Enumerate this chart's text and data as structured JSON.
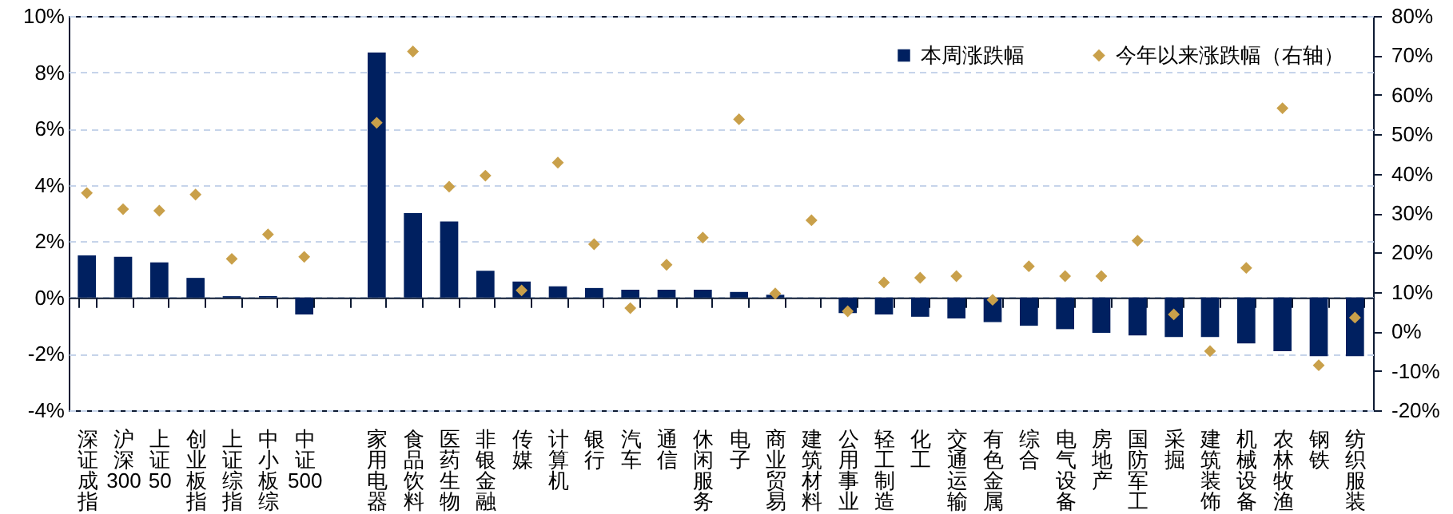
{
  "chart_data": {
    "type": "bar",
    "categories": [
      "深证成指",
      "沪深300",
      "上证50",
      "创业板指",
      "上证综指",
      "中小板综",
      "中证500",
      null,
      "家用电器",
      "食品饮料",
      "医药生物",
      "非银金融",
      "传媒",
      "计算机",
      "银行",
      "汽车",
      "通信",
      "休闲服务",
      "电子",
      "商业贸易",
      "建筑材料",
      "公用事业",
      "轻工制造",
      "化工",
      "交通运输",
      "有色金属",
      "综合",
      "电气设备",
      "房地产",
      "国防军工",
      "采掘",
      "建筑装饰",
      "机械设备",
      "农林牧渔",
      "钢铁",
      "纺织服装"
    ],
    "series": [
      {
        "name": "本周涨跌幅",
        "type": "bar",
        "color": "#002060",
        "values": [
          1.5,
          1.45,
          1.25,
          0.7,
          0.05,
          0.05,
          -0.6,
          null,
          8.7,
          3.0,
          2.7,
          0.95,
          0.57,
          0.4,
          0.34,
          0.28,
          0.28,
          0.28,
          0.2,
          0.1,
          0,
          -0.55,
          -0.6,
          -0.68,
          -0.74,
          -0.87,
          -1.0,
          -1.12,
          -1.25,
          -1.34,
          -1.4,
          -1.4,
          -1.63,
          -1.9,
          -2.08,
          -2.08
        ]
      },
      {
        "name": "今年以来涨跌幅（右轴）",
        "type": "scatter",
        "axis": "y2",
        "color": "#c9a04a",
        "values": [
          35.1,
          31,
          30.6,
          34.7,
          18.4,
          24.6,
          18.9,
          null,
          52.9,
          71,
          36.7,
          39.5,
          10.4,
          42.8,
          22.1,
          5.9,
          16.9,
          23.8,
          53.8,
          9.6,
          28.2,
          5.1,
          12.4,
          13.6,
          14,
          8,
          16.5,
          14,
          14,
          23,
          4.3,
          -5,
          16.1,
          56.6,
          -8.6,
          3.5
        ]
      }
    ],
    "ylim": [
      -4,
      10
    ],
    "yticks": [
      {
        "value": -4,
        "label": "-4%"
      },
      {
        "value": -2,
        "label": "-2%"
      },
      {
        "value": 0,
        "label": "0%"
      },
      {
        "value": 2,
        "label": "2%"
      },
      {
        "value": 4,
        "label": "4%"
      },
      {
        "value": 6,
        "label": "6%"
      },
      {
        "value": 8,
        "label": "8%"
      },
      {
        "value": 10,
        "label": "10%"
      }
    ],
    "y2lim": [
      -20,
      80
    ],
    "y2ticks": [
      {
        "value": -20,
        "label": "-20%"
      },
      {
        "value": -10,
        "label": "-10%"
      },
      {
        "value": 0,
        "label": "0%"
      },
      {
        "value": 10,
        "label": "10%"
      },
      {
        "value": 20,
        "label": "20%"
      },
      {
        "value": 30,
        "label": "30%"
      },
      {
        "value": 40,
        "label": "40%"
      },
      {
        "value": 50,
        "label": "50%"
      },
      {
        "value": 60,
        "label": "60%"
      },
      {
        "value": 70,
        "label": "70%"
      },
      {
        "value": 80,
        "label": "80%"
      }
    ],
    "grid": "y",
    "legend": "top right",
    "marker": "diamond"
  }
}
